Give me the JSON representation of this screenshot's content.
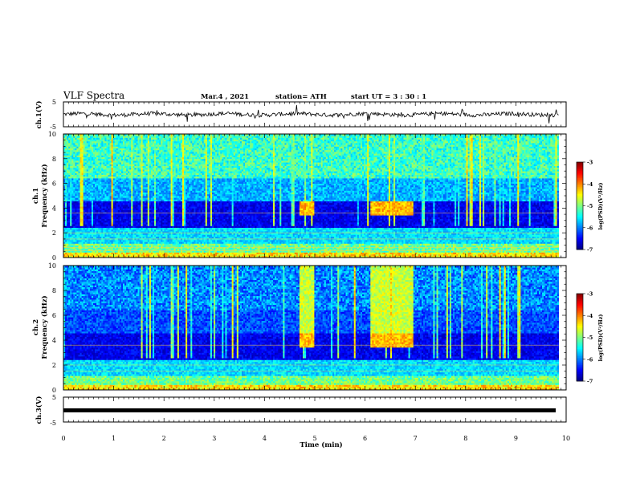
{
  "header": {
    "title": "VLF Spectra",
    "date": "Mar.4 , 2021",
    "station": "station= ATH",
    "start": "start  UT  =   3  : 30 : 1"
  },
  "chart_data": {
    "type": "heatmap",
    "x_axis": {
      "label": "Time  (min)",
      "range": [
        0,
        10
      ],
      "ticks": [
        "0",
        "1",
        "2",
        "3",
        "4",
        "5",
        "6",
        "7",
        "8",
        "9",
        "10"
      ]
    },
    "panels": [
      {
        "name": "ch.1(V)",
        "type": "line",
        "ylabel": "ch.1(V)",
        "ylim": [
          -5,
          5
        ],
        "yticks": [
          "5",
          "-5"
        ],
        "baseline": 0
      },
      {
        "name": "ch.1",
        "type": "heatmap",
        "ylabel": "ch.1\nFrequency  (kHz)",
        "ylim": [
          0,
          10
        ],
        "yticks": [
          "0",
          "2",
          "4",
          "6",
          "8",
          "10"
        ],
        "enhancements": [
          {
            "t_start": 4.7,
            "t_end": 5.0,
            "f_low": 3.5,
            "f_high": 4.5
          },
          {
            "t_start": 6.1,
            "t_end": 6.95,
            "f_low": 3.5,
            "f_high": 4.5
          }
        ],
        "colorbar": {
          "label": "log(PSD)(V²/Hz)",
          "range": [
            -7,
            -3
          ],
          "ticks": [
            "-3",
            "-4",
            "-5",
            "-6",
            "-7"
          ]
        }
      },
      {
        "name": "ch.2",
        "type": "heatmap",
        "ylabel": "ch.2\nFrequency  (kHz)",
        "ylim": [
          0,
          10
        ],
        "yticks": [
          "0",
          "2",
          "4",
          "6",
          "8",
          "10"
        ],
        "enhancements": [
          {
            "t_start": 4.7,
            "t_end": 5.0,
            "f_low": 3.5,
            "f_high": 10
          },
          {
            "t_start": 6.1,
            "t_end": 6.95,
            "f_low": 3.5,
            "f_high": 10
          }
        ],
        "colorbar": {
          "label": "log(PSD)(V²/Hz)",
          "range": [
            -7,
            -3
          ],
          "ticks": [
            "-3",
            "-4",
            "-5",
            "-6",
            "-7"
          ]
        }
      },
      {
        "name": "ch.3(V)",
        "type": "line",
        "ylabel": "ch.3(V)",
        "ylim": [
          -5,
          5
        ],
        "yticks": [
          "5",
          "-5"
        ],
        "baseline": 0
      }
    ],
    "data_end_min": 9.85
  }
}
